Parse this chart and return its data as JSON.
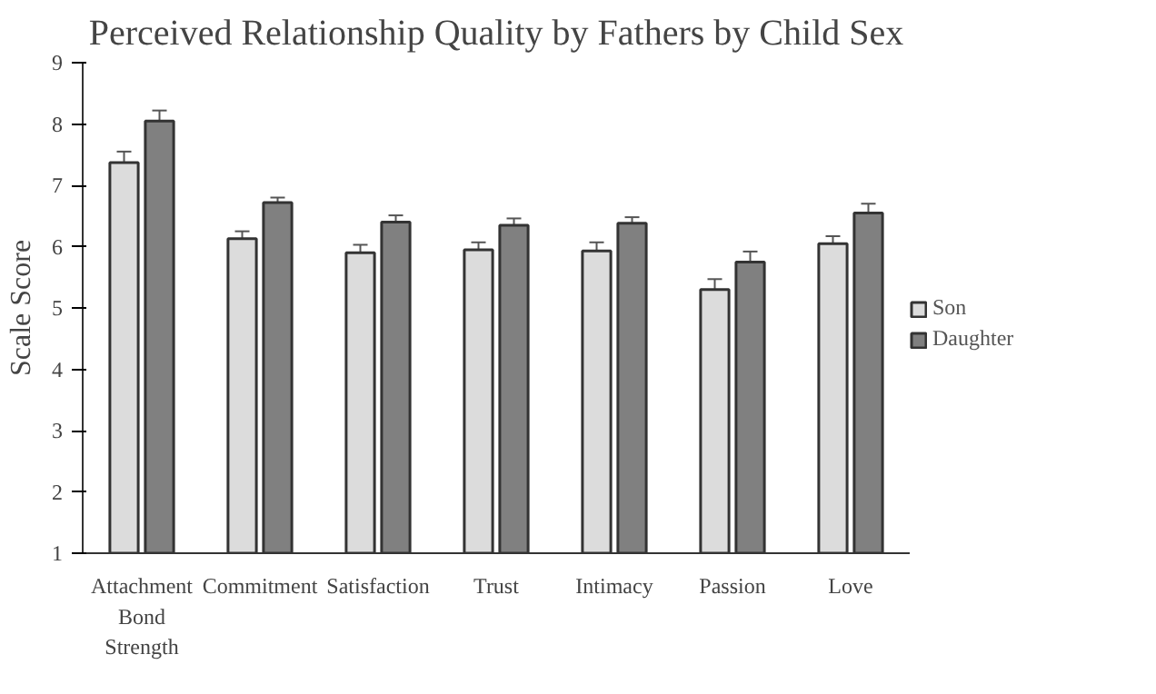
{
  "chart_data": {
    "type": "bar",
    "title": "Perceived Relationship Quality by Fathers by Child Sex",
    "ylabel": "Scale Score",
    "categories": [
      "Attachment Bond Strength",
      "Commitment",
      "Satisfaction",
      "Trust",
      "Intimacy",
      "Passion",
      "Love"
    ],
    "series": [
      {
        "name": "Son",
        "color": "#dcdcdc",
        "values": [
          7.37,
          6.13,
          5.9,
          5.95,
          5.93,
          5.3,
          6.05
        ],
        "errors": [
          0.18,
          0.12,
          0.13,
          0.12,
          0.14,
          0.17,
          0.12
        ]
      },
      {
        "name": "Daughter",
        "color": "#808080",
        "values": [
          8.05,
          6.72,
          6.4,
          6.35,
          6.38,
          5.75,
          6.55
        ],
        "errors": [
          0.17,
          0.08,
          0.11,
          0.11,
          0.1,
          0.17,
          0.15
        ]
      }
    ],
    "ylim": [
      1,
      9
    ],
    "yticks": [
      1,
      2,
      3,
      4,
      5,
      6,
      7,
      8,
      9
    ],
    "grid": false,
    "legend": "right"
  }
}
